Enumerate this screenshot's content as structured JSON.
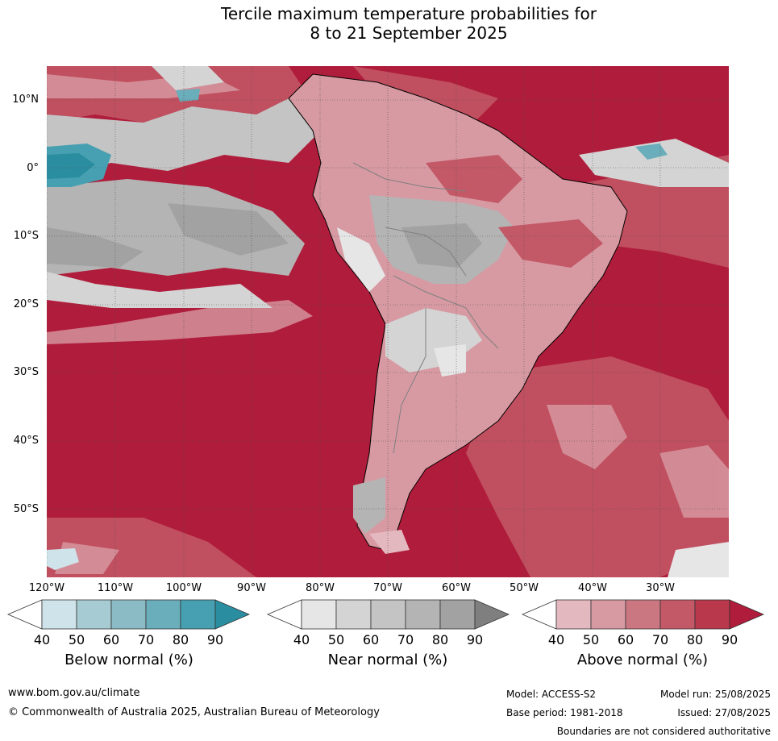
{
  "title": {
    "line1": "Tercile maximum temperature probabilities for",
    "line2": "8 to 21 September 2025"
  },
  "axes": {
    "lat_labels": [
      "10°N",
      "0°",
      "10°S",
      "20°S",
      "30°S",
      "40°S",
      "50°S"
    ],
    "lon_labels": [
      "120°W",
      "110°W",
      "100°W",
      "90°W",
      "80°W",
      "70°W",
      "60°W",
      "50°W",
      "40°W",
      "30°W"
    ]
  },
  "colorbars": {
    "below": {
      "title": "Below normal (%)",
      "ticks": [
        "40",
        "50",
        "60",
        "70",
        "80",
        "90"
      ],
      "colors": [
        "#ffffff",
        "#cfe4ea",
        "#a7cbd2",
        "#8bbcc5",
        "#6aaebb",
        "#47a0b1",
        "#2a8da0"
      ]
    },
    "near": {
      "title": "Near normal (%)",
      "ticks": [
        "40",
        "50",
        "60",
        "70",
        "80",
        "90"
      ],
      "colors": [
        "#ffffff",
        "#e6e6e6",
        "#d4d4d4",
        "#c4c4c4",
        "#b4b4b4",
        "#a2a2a2",
        "#7f7f7f"
      ]
    },
    "above": {
      "title": "Above normal (%)",
      "ticks": [
        "40",
        "50",
        "60",
        "70",
        "80",
        "90"
      ],
      "colors": [
        "#ffffff",
        "#e4b8bf",
        "#d79aa3",
        "#cb7782",
        "#c35866",
        "#b9384b",
        "#b01c3b"
      ]
    }
  },
  "footer": {
    "url": "www.bom.gov.au/climate",
    "copyright": "© Commonwealth of Australia 2025, Australian Bureau of Meteorology",
    "model": "Model: ACCESS-S2",
    "base_period": "Base period: 1981-2018",
    "model_run": "Model run: 25/08/2025",
    "issued": "Issued: 27/08/2025",
    "disclaimer": "Boundaries are not considered authoritative"
  }
}
